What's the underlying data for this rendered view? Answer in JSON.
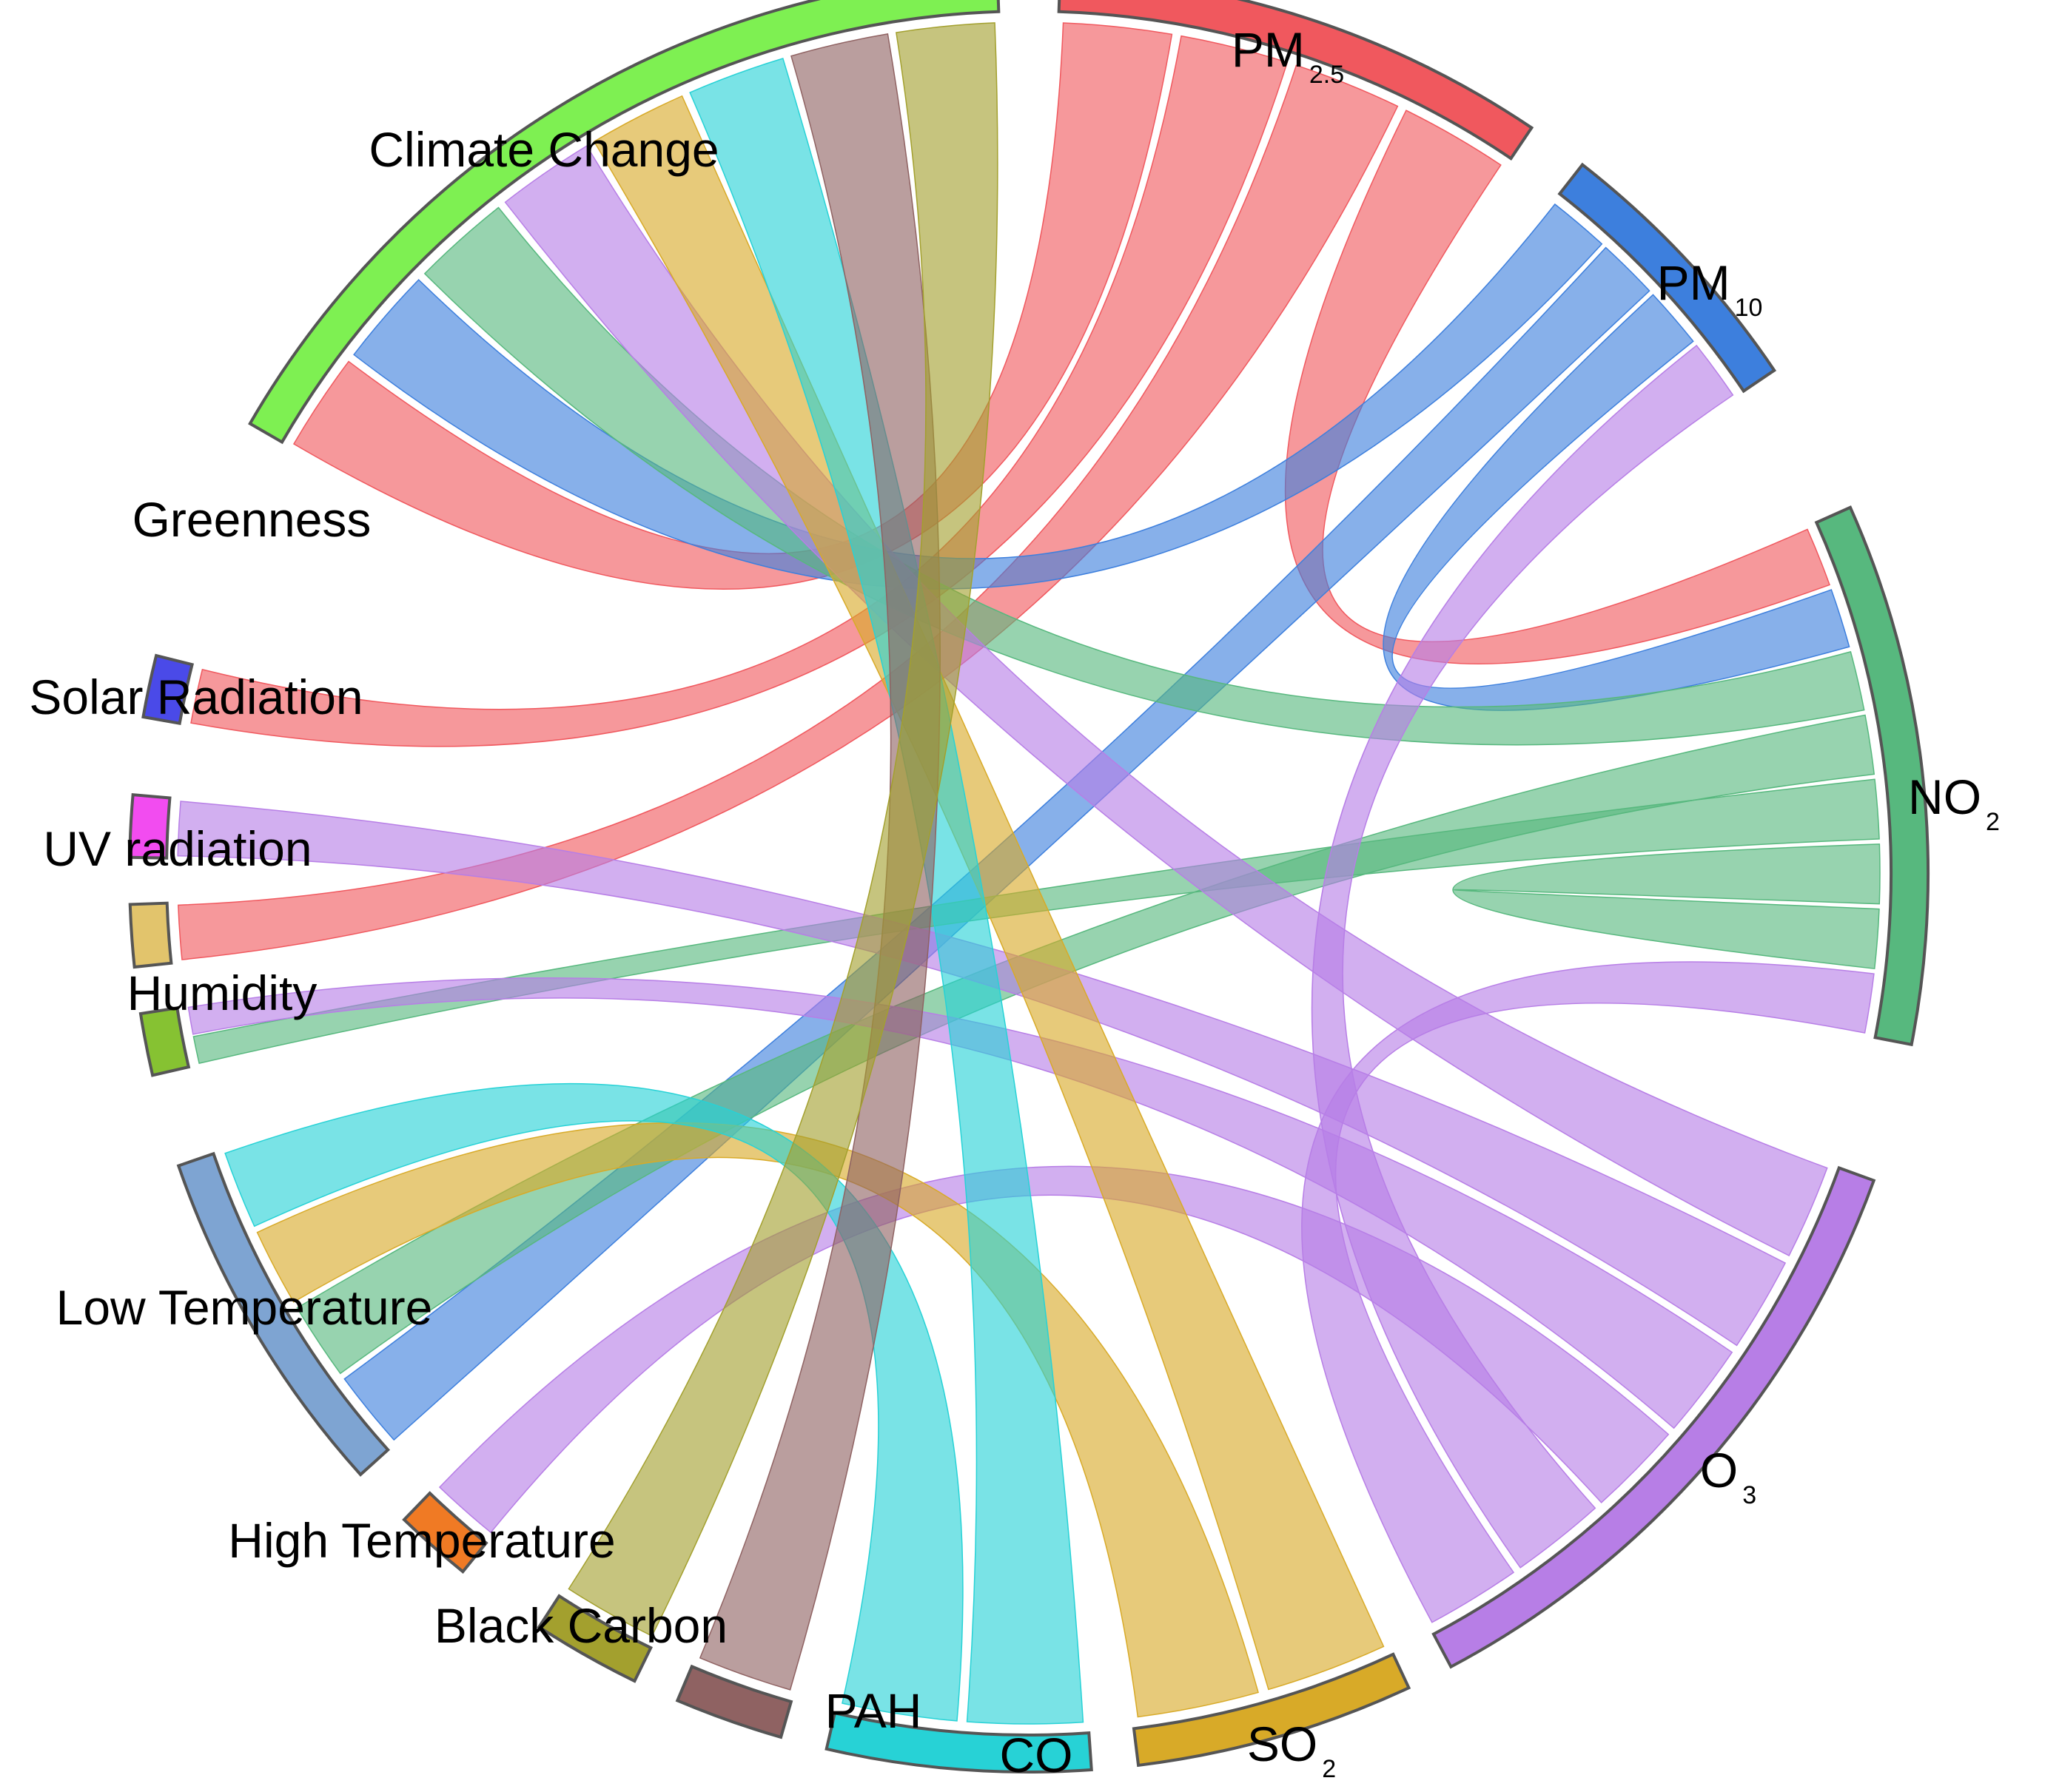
{
  "diagram": {
    "type": "chord",
    "nodes": [
      {
        "id": "pm25",
        "label": "PM",
        "sub": "2.5",
        "color": "#f0585e"
      },
      {
        "id": "pm10",
        "label": "PM",
        "sub": "10",
        "color": "#3d7fdd"
      },
      {
        "id": "no2",
        "label": "NO",
        "sub": "2",
        "color": "#57b87e"
      },
      {
        "id": "o3",
        "label": "O",
        "sub": "3",
        "color": "#b77ee6"
      },
      {
        "id": "so2",
        "label": "SO",
        "sub": "2",
        "color": "#d8aa28"
      },
      {
        "id": "co",
        "label": "CO",
        "sub": "",
        "color": "#27d2d6"
      },
      {
        "id": "pah",
        "label": "PAH",
        "sub": "",
        "color": "#8f6262"
      },
      {
        "id": "bc",
        "label": "Black Carbon",
        "sub": "",
        "color": "#a3a02e"
      },
      {
        "id": "hightemp",
        "label": "High Temperature",
        "sub": "",
        "color": "#f07a24"
      },
      {
        "id": "lowtemp",
        "label": "Low Temperature",
        "sub": "",
        "color": "#7ea4d2"
      },
      {
        "id": "humidity",
        "label": "Humidity",
        "sub": "",
        "color": "#86c232"
      },
      {
        "id": "uv",
        "label": "UV radiation",
        "sub": "",
        "color": "#e2c46c"
      },
      {
        "id": "solar",
        "label": "Solar Radiation",
        "sub": "",
        "color": "#f24cf0"
      },
      {
        "id": "greenness",
        "label": "Greenness",
        "sub": "",
        "color": "#4a4ae8"
      },
      {
        "id": "climate",
        "label": "Climate Change",
        "sub": "",
        "color": "#7ef052"
      }
    ],
    "links": [
      [
        "pm25",
        "climate"
      ],
      [
        "pm25",
        "greenness"
      ],
      [
        "pm25",
        "uv"
      ],
      [
        "pm25",
        "no2"
      ],
      [
        "pm10",
        "climate"
      ],
      [
        "pm10",
        "lowtemp"
      ],
      [
        "pm10",
        "no2"
      ],
      [
        "no2",
        "climate"
      ],
      [
        "no2",
        "lowtemp"
      ],
      [
        "no2",
        "humidity"
      ],
      [
        "no2",
        "no2"
      ],
      [
        "o3",
        "climate"
      ],
      [
        "o3",
        "solar"
      ],
      [
        "o3",
        "humidity"
      ],
      [
        "o3",
        "hightemp"
      ],
      [
        "o3",
        "pm10"
      ],
      [
        "o3",
        "no2"
      ],
      [
        "so2",
        "climate"
      ],
      [
        "so2",
        "lowtemp"
      ],
      [
        "co",
        "climate"
      ],
      [
        "co",
        "lowtemp"
      ],
      [
        "pah",
        "climate"
      ],
      [
        "bc",
        "climate"
      ]
    ]
  }
}
